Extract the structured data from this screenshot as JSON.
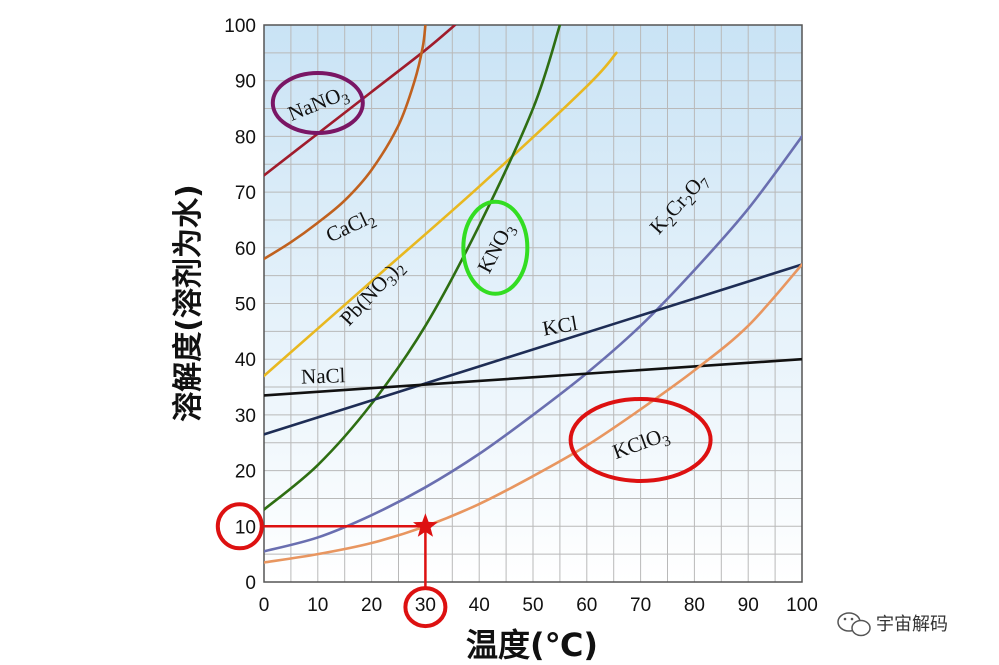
{
  "chart_data": {
    "type": "line",
    "xlabel": "温度(℃)",
    "ylabel": "溶解度(溶剂为水)",
    "xlim": [
      0,
      100
    ],
    "ylim": [
      0,
      100
    ],
    "xticks": [
      "0",
      "10",
      "20",
      "30",
      "40",
      "50",
      "60",
      "70",
      "80",
      "90",
      "100"
    ],
    "yticks": [
      "0",
      "10",
      "20",
      "30",
      "40",
      "50",
      "60",
      "70",
      "80",
      "90",
      "100"
    ],
    "grid": true,
    "series": [
      {
        "name": "NaNO3",
        "color": "#a01c2c",
        "x": [
          0,
          10,
          20,
          30,
          35.5
        ],
        "y": [
          73,
          80.5,
          88,
          95.5,
          100
        ]
      },
      {
        "name": "CaCl2",
        "color": "#c0611f",
        "x": [
          0,
          5,
          10,
          15,
          20,
          25,
          28,
          29.5,
          30
        ],
        "y": [
          58,
          61,
          64.5,
          68.5,
          74,
          82,
          90,
          96,
          100
        ]
      },
      {
        "name": "Pb(NO3)2",
        "color": "#e8b820",
        "x": [
          0,
          20,
          40,
          60,
          65.5
        ],
        "y": [
          37,
          54,
          71,
          89,
          95
        ]
      },
      {
        "name": "KNO3",
        "color": "#2e6e12",
        "x": [
          0,
          10,
          20,
          30,
          40,
          50,
          55
        ],
        "y": [
          13,
          21,
          32,
          46,
          64,
          85,
          100
        ]
      },
      {
        "name": "K2Cr2O7",
        "color": "#6a6fb0",
        "x": [
          0,
          10,
          20,
          30,
          40,
          50,
          60,
          70,
          80,
          90,
          100
        ],
        "y": [
          5.5,
          8,
          12,
          17,
          23,
          30,
          37.5,
          46,
          56,
          67,
          80
        ]
      },
      {
        "name": "KCl",
        "color": "#1e2d55",
        "x": [
          0,
          100
        ],
        "y": [
          26.5,
          57
        ]
      },
      {
        "name": "NaCl",
        "color": "#111111",
        "x": [
          0,
          100
        ],
        "y": [
          33.5,
          40
        ]
      },
      {
        "name": "KClO3",
        "color": "#e89660",
        "x": [
          0,
          10,
          20,
          30,
          40,
          50,
          60,
          70,
          80,
          90,
          100
        ],
        "y": [
          3.5,
          5,
          7,
          10,
          14,
          19,
          24.5,
          31,
          38,
          46,
          57
        ]
      }
    ],
    "labels": [
      {
        "text": "NaNO",
        "sub": "3",
        "x": 10,
        "y": 86,
        "angle": -22
      },
      {
        "text": "CaCl",
        "sub": "2",
        "x": 16,
        "y": 64,
        "angle": -25
      },
      {
        "text": "Pb(NO",
        "sub": "3",
        "after": ")",
        "sub2": "2",
        "x": 20,
        "y": 52,
        "angle": -47
      },
      {
        "text": "KNO",
        "sub": "3",
        "x": 43,
        "y": 60,
        "angle": -62
      },
      {
        "text": "K",
        "sub": "2",
        "after": "Cr",
        "sub2": "2",
        "after2": "O",
        "sub3": "7",
        "x": 77,
        "y": 68,
        "angle": -48
      },
      {
        "text": "KCl",
        "x": 55,
        "y": 46,
        "angle": -10
      },
      {
        "text": "NaCl",
        "x": 11,
        "y": 37,
        "angle": -2
      },
      {
        "text": "KClO",
        "sub": "3",
        "x": 70,
        "y": 25,
        "angle": -20
      }
    ],
    "highlights": [
      {
        "label": "NaNO3",
        "color": "#7a1665",
        "cx": 10,
        "cy": 86,
        "rx": 45,
        "ry": 30
      },
      {
        "label": "KNO3",
        "color": "#33dd22",
        "cx": 43,
        "cy": 60,
        "rx": 32,
        "ry": 46
      },
      {
        "label": "KClO3",
        "color": "#dd1111",
        "cx": 70,
        "cy": 25.5,
        "rx": 70,
        "ry": 41
      },
      {
        "label": "10",
        "color": "#dd1111",
        "cx": -4.5,
        "cy": 10,
        "rx": 22,
        "ry": 22
      },
      {
        "label": "30",
        "color": "#dd1111",
        "cx": 30,
        "cy": -4.5,
        "rx": 20,
        "ry": 19
      }
    ],
    "marker": {
      "x": 30,
      "y": 10,
      "color": "#dd1111"
    }
  },
  "watermark": {
    "text": "宇宙解码",
    "icon": "wechat-icon"
  }
}
